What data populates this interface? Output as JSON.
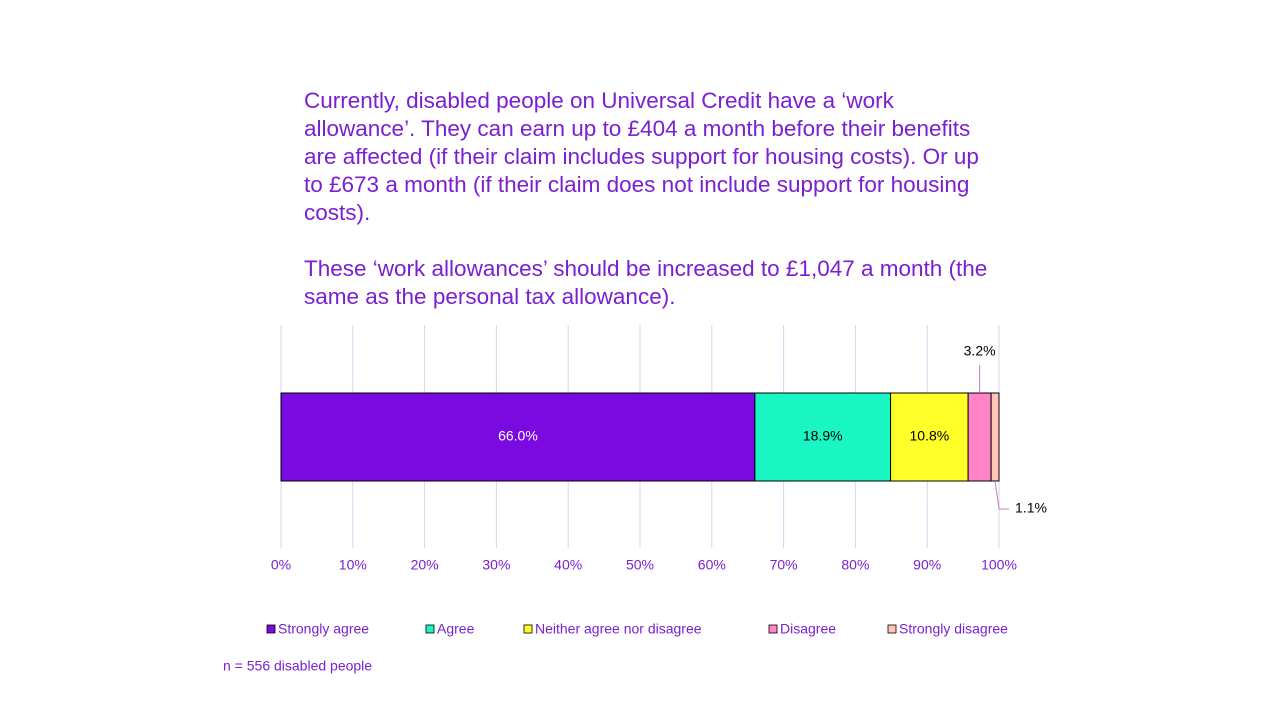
{
  "chart_data": {
    "type": "stacked-barh",
    "title": [
      "Currently, disabled people on Universal Credit have a ‘work allowance’. They can earn up to £404 a month before their benefits are affected (if their claim includes support for housing costs). Or up to £673 a month (if their claim does not include support for housing costs).",
      "These ‘work allowances’ should be increased to £1,047 a month (the same as the personal tax allowance)."
    ],
    "categories": [
      null
    ],
    "series": [
      {
        "name": "Strongly agree",
        "color": "#7b0ae0",
        "values": [
          66.0
        ],
        "value_labels": [
          "66.0%"
        ]
      },
      {
        "name": "Agree",
        "color": "#1af5c4",
        "values": [
          18.9
        ],
        "value_labels": [
          "18.9%"
        ]
      },
      {
        "name": "Neither agree nor disagree",
        "color": "#ffff2a",
        "values": [
          10.8
        ],
        "value_labels": [
          "10.8%"
        ]
      },
      {
        "name": "Disagree",
        "color": "#ff85c8",
        "values": [
          3.2
        ],
        "value_labels": [
          "3.2%"
        ]
      },
      {
        "name": "Strongly disagree",
        "color": "#ffc6b8",
        "values": [
          1.1
        ],
        "value_labels": [
          "1.1%"
        ]
      }
    ],
    "xlim": [
      0,
      100
    ],
    "xticks": [
      {
        "value": 0,
        "label": "0%"
      },
      {
        "value": 10,
        "label": "10%"
      },
      {
        "value": 20,
        "label": "20%"
      },
      {
        "value": 30,
        "label": "30%"
      },
      {
        "value": 40,
        "label": "40%"
      },
      {
        "value": 50,
        "label": "50%"
      },
      {
        "value": 60,
        "label": "60%"
      },
      {
        "value": 70,
        "label": "70%"
      },
      {
        "value": 80,
        "label": "80%"
      },
      {
        "value": 90,
        "label": "90%"
      },
      {
        "value": 100,
        "label": "100%"
      }
    ],
    "grid": true,
    "legend": "bottom",
    "note": "n = 556 disabled people"
  }
}
